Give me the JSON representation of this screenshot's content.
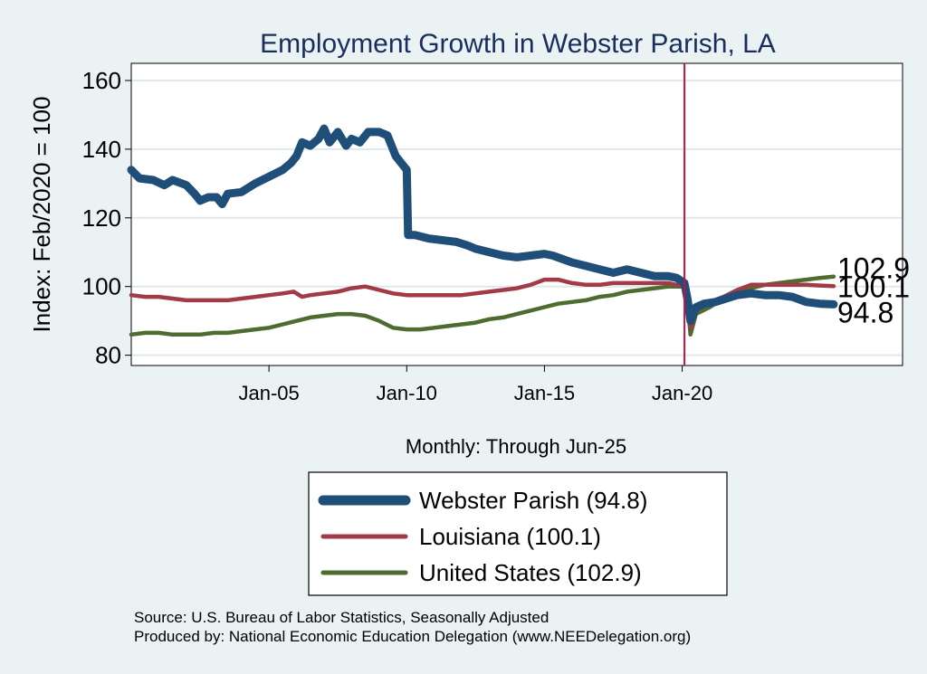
{
  "chart_data": {
    "type": "line",
    "title": "Employment Growth in Webster Parish, LA",
    "xlabel": "Monthly: Through Jun-25",
    "ylabel": "Index: Feb/2020 = 100",
    "ylim": [
      77,
      165
    ],
    "xlim": [
      2000.0,
      2028.0
    ],
    "y_ticks": [
      80,
      100,
      120,
      140,
      160
    ],
    "x_ticks": [
      {
        "label": "Jan-05",
        "value": 2005.0
      },
      {
        "label": "Jan-10",
        "value": 2010.0
      },
      {
        "label": "Jan-15",
        "value": 2015.0
      },
      {
        "label": "Jan-20",
        "value": 2020.0
      }
    ],
    "reference_line": {
      "x": 2020.083,
      "color": "#c0143c"
    },
    "grid": true,
    "series": [
      {
        "name": "Webster Parish",
        "legend_label": "Webster Parish  (94.8)",
        "color": "#1f4e79",
        "end_label": "94.8",
        "points": [
          [
            2000.0,
            134
          ],
          [
            2000.3,
            131.5
          ],
          [
            2000.8,
            131
          ],
          [
            2001.2,
            129.5
          ],
          [
            2001.5,
            131
          ],
          [
            2002.0,
            129.5
          ],
          [
            2002.3,
            127
          ],
          [
            2002.5,
            125
          ],
          [
            2002.8,
            126
          ],
          [
            2003.1,
            126
          ],
          [
            2003.3,
            124
          ],
          [
            2003.5,
            127
          ],
          [
            2004.0,
            127.5
          ],
          [
            2004.5,
            130
          ],
          [
            2005.0,
            132
          ],
          [
            2005.5,
            134
          ],
          [
            2005.8,
            136
          ],
          [
            2006.0,
            138
          ],
          [
            2006.2,
            142
          ],
          [
            2006.5,
            141
          ],
          [
            2006.8,
            143
          ],
          [
            2007.0,
            146
          ],
          [
            2007.2,
            142
          ],
          [
            2007.5,
            145
          ],
          [
            2007.8,
            141
          ],
          [
            2008.0,
            143
          ],
          [
            2008.3,
            142
          ],
          [
            2008.6,
            145
          ],
          [
            2009.0,
            145
          ],
          [
            2009.3,
            144
          ],
          [
            2009.6,
            138
          ],
          [
            2009.9,
            135
          ],
          [
            2010.0,
            134
          ],
          [
            2010.05,
            115
          ],
          [
            2010.3,
            115
          ],
          [
            2010.8,
            114
          ],
          [
            2011.3,
            113.5
          ],
          [
            2011.8,
            113
          ],
          [
            2012.2,
            112
          ],
          [
            2012.5,
            111
          ],
          [
            2013.0,
            110
          ],
          [
            2013.5,
            109
          ],
          [
            2014.0,
            108.5
          ],
          [
            2014.5,
            109
          ],
          [
            2015.0,
            109.5
          ],
          [
            2015.3,
            109
          ],
          [
            2016.0,
            107
          ],
          [
            2016.5,
            106
          ],
          [
            2017.0,
            105
          ],
          [
            2017.5,
            104
          ],
          [
            2018.0,
            105
          ],
          [
            2018.5,
            104
          ],
          [
            2019.0,
            103
          ],
          [
            2019.5,
            103
          ],
          [
            2019.8,
            102.5
          ],
          [
            2020.08,
            101
          ],
          [
            2020.2,
            96
          ],
          [
            2020.3,
            90
          ],
          [
            2020.5,
            94
          ],
          [
            2020.8,
            95
          ],
          [
            2021.2,
            95.5
          ],
          [
            2021.6,
            96.5
          ],
          [
            2022.0,
            97.5
          ],
          [
            2022.5,
            98
          ],
          [
            2023.0,
            97.5
          ],
          [
            2023.5,
            97.5
          ],
          [
            2024.0,
            97
          ],
          [
            2024.5,
            95.5
          ],
          [
            2025.0,
            95
          ],
          [
            2025.5,
            94.8
          ]
        ]
      },
      {
        "name": "Louisiana",
        "legend_label": "Louisiana (100.1)",
        "color": "#a23a47",
        "end_label": "100.1",
        "points": [
          [
            2000.0,
            97.5
          ],
          [
            2000.5,
            97
          ],
          [
            2001.0,
            97
          ],
          [
            2001.5,
            96.5
          ],
          [
            2002.0,
            96
          ],
          [
            2002.5,
            96
          ],
          [
            2003.0,
            96
          ],
          [
            2003.5,
            96
          ],
          [
            2004.0,
            96.5
          ],
          [
            2004.5,
            97
          ],
          [
            2005.0,
            97.5
          ],
          [
            2005.5,
            98
          ],
          [
            2005.9,
            98.5
          ],
          [
            2006.2,
            97
          ],
          [
            2006.5,
            97.5
          ],
          [
            2007.0,
            98
          ],
          [
            2007.5,
            98.5
          ],
          [
            2008.0,
            99.5
          ],
          [
            2008.5,
            100
          ],
          [
            2009.0,
            99
          ],
          [
            2009.5,
            98
          ],
          [
            2010.0,
            97.5
          ],
          [
            2010.5,
            97.5
          ],
          [
            2011.0,
            97.5
          ],
          [
            2011.5,
            97.5
          ],
          [
            2012.0,
            97.5
          ],
          [
            2012.5,
            98
          ],
          [
            2013.0,
            98.5
          ],
          [
            2013.5,
            99
          ],
          [
            2014.0,
            99.5
          ],
          [
            2014.5,
            100.5
          ],
          [
            2015.0,
            102
          ],
          [
            2015.5,
            102
          ],
          [
            2016.0,
            101
          ],
          [
            2016.5,
            100.5
          ],
          [
            2017.0,
            100.5
          ],
          [
            2017.5,
            101
          ],
          [
            2018.0,
            101
          ],
          [
            2018.5,
            101
          ],
          [
            2019.0,
            101
          ],
          [
            2019.5,
            101
          ],
          [
            2020.08,
            100
          ],
          [
            2020.2,
            95
          ],
          [
            2020.3,
            88
          ],
          [
            2020.5,
            93
          ],
          [
            2021.0,
            95.5
          ],
          [
            2021.5,
            97
          ],
          [
            2022.0,
            99
          ],
          [
            2022.5,
            100.5
          ],
          [
            2023.0,
            100.5
          ],
          [
            2023.5,
            100.5
          ],
          [
            2024.0,
            100.5
          ],
          [
            2024.5,
            100.5
          ],
          [
            2025.0,
            100.3
          ],
          [
            2025.5,
            100.1
          ]
        ]
      },
      {
        "name": "United States",
        "legend_label": "United States (102.9)",
        "color": "#4e6b30",
        "end_label": "102.9",
        "points": [
          [
            2000.0,
            86
          ],
          [
            2000.5,
            86.5
          ],
          [
            2001.0,
            86.5
          ],
          [
            2001.5,
            86
          ],
          [
            2002.0,
            86
          ],
          [
            2002.5,
            86
          ],
          [
            2003.0,
            86.5
          ],
          [
            2003.5,
            86.5
          ],
          [
            2004.0,
            87
          ],
          [
            2004.5,
            87.5
          ],
          [
            2005.0,
            88
          ],
          [
            2005.5,
            89
          ],
          [
            2006.0,
            90
          ],
          [
            2006.5,
            91
          ],
          [
            2007.0,
            91.5
          ],
          [
            2007.5,
            92
          ],
          [
            2008.0,
            92
          ],
          [
            2008.5,
            91.5
          ],
          [
            2009.0,
            90
          ],
          [
            2009.5,
            88
          ],
          [
            2010.0,
            87.5
          ],
          [
            2010.5,
            87.5
          ],
          [
            2011.0,
            88
          ],
          [
            2011.5,
            88.5
          ],
          [
            2012.0,
            89
          ],
          [
            2012.5,
            89.5
          ],
          [
            2013.0,
            90.5
          ],
          [
            2013.5,
            91
          ],
          [
            2014.0,
            92
          ],
          [
            2014.5,
            93
          ],
          [
            2015.0,
            94
          ],
          [
            2015.5,
            95
          ],
          [
            2016.0,
            95.5
          ],
          [
            2016.5,
            96
          ],
          [
            2017.0,
            97
          ],
          [
            2017.5,
            97.5
          ],
          [
            2018.0,
            98.5
          ],
          [
            2018.5,
            99
          ],
          [
            2019.0,
            99.5
          ],
          [
            2019.5,
            100
          ],
          [
            2020.08,
            100
          ],
          [
            2020.2,
            95
          ],
          [
            2020.3,
            86
          ],
          [
            2020.5,
            92
          ],
          [
            2021.0,
            94
          ],
          [
            2021.5,
            96.5
          ],
          [
            2022.0,
            98.5
          ],
          [
            2022.5,
            99.5
          ],
          [
            2023.0,
            100.5
          ],
          [
            2023.5,
            101
          ],
          [
            2024.0,
            101.5
          ],
          [
            2024.5,
            102
          ],
          [
            2025.0,
            102.5
          ],
          [
            2025.5,
            102.9
          ]
        ]
      }
    ]
  },
  "footer": {
    "source": "Source: U.S. Bureau of Labor Statistics, Seasonally Adjusted",
    "produced_by": "Produced by: National Economic Education Delegation (www.NEEDelegation.org)"
  }
}
